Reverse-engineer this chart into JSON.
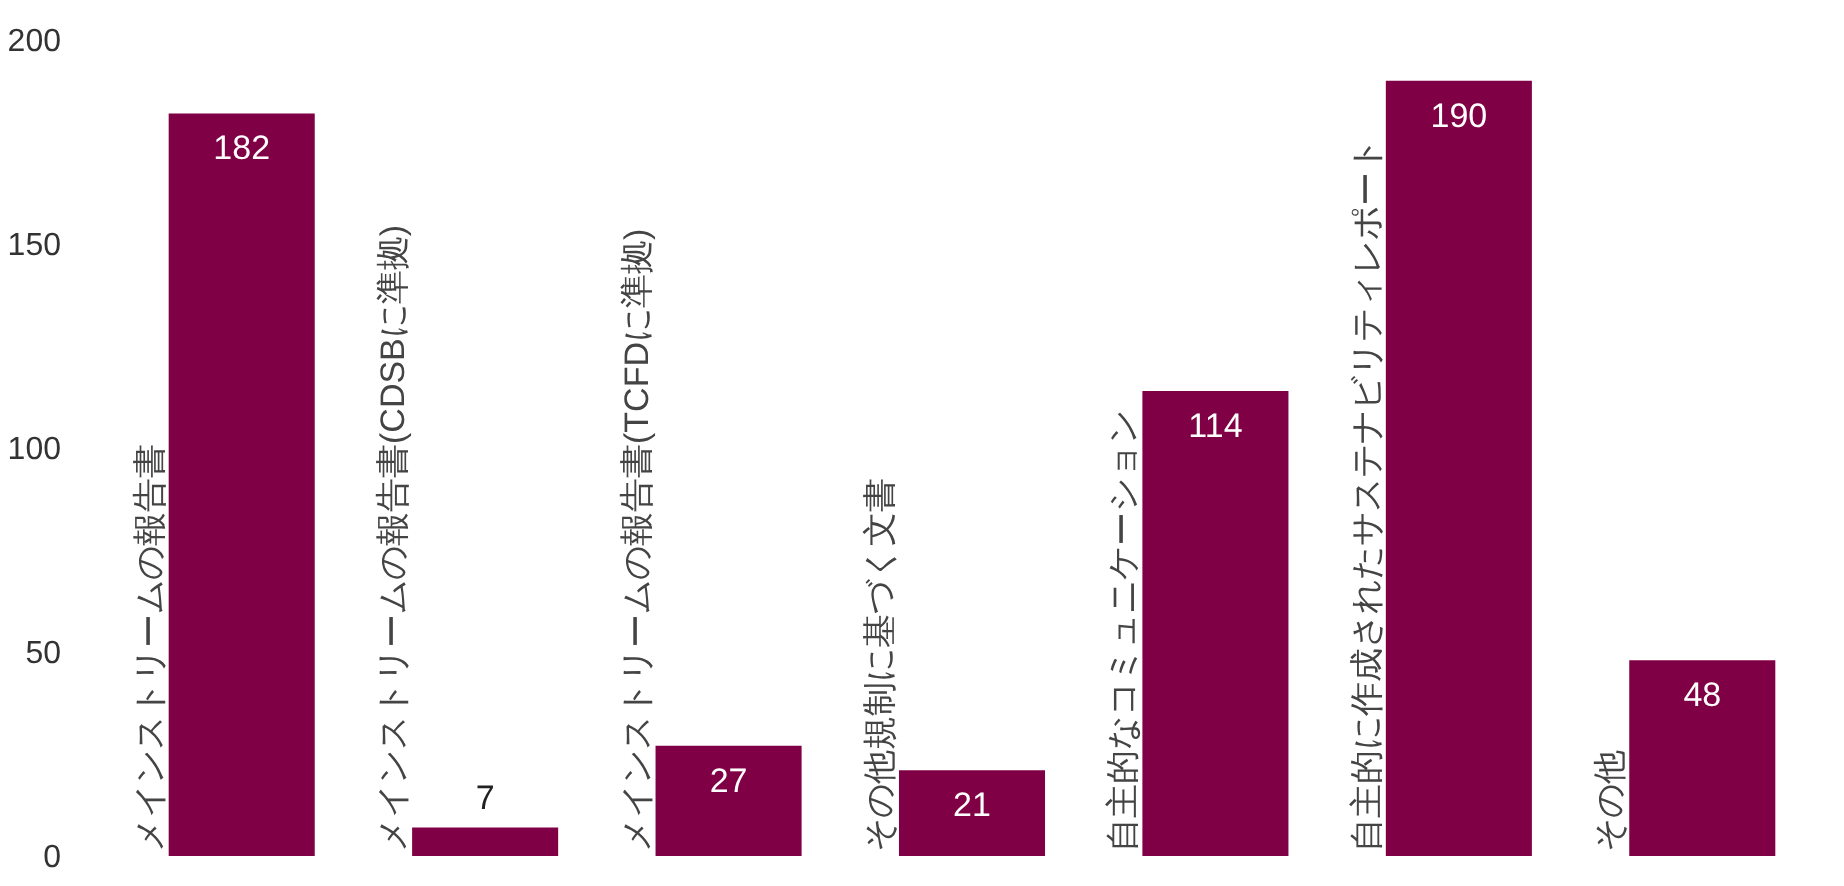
{
  "chart_data": {
    "type": "bar",
    "categories": [
      "メインストリームの報告書",
      "メインストリームの報告書(CDSBに準拠)",
      "メインストリームの報告書(TCFDに準拠)",
      "その他規制に基づく文書",
      "自主的なコミュニケーション",
      "自主的に作成されたサステナビリティレポート",
      "その他"
    ],
    "values": [
      182,
      7,
      27,
      21,
      114,
      190,
      48
    ],
    "color": "#7f0045",
    "ylim": [
      0,
      200
    ],
    "yticks": [
      0,
      50,
      100,
      150,
      200
    ],
    "data_labels": true
  }
}
